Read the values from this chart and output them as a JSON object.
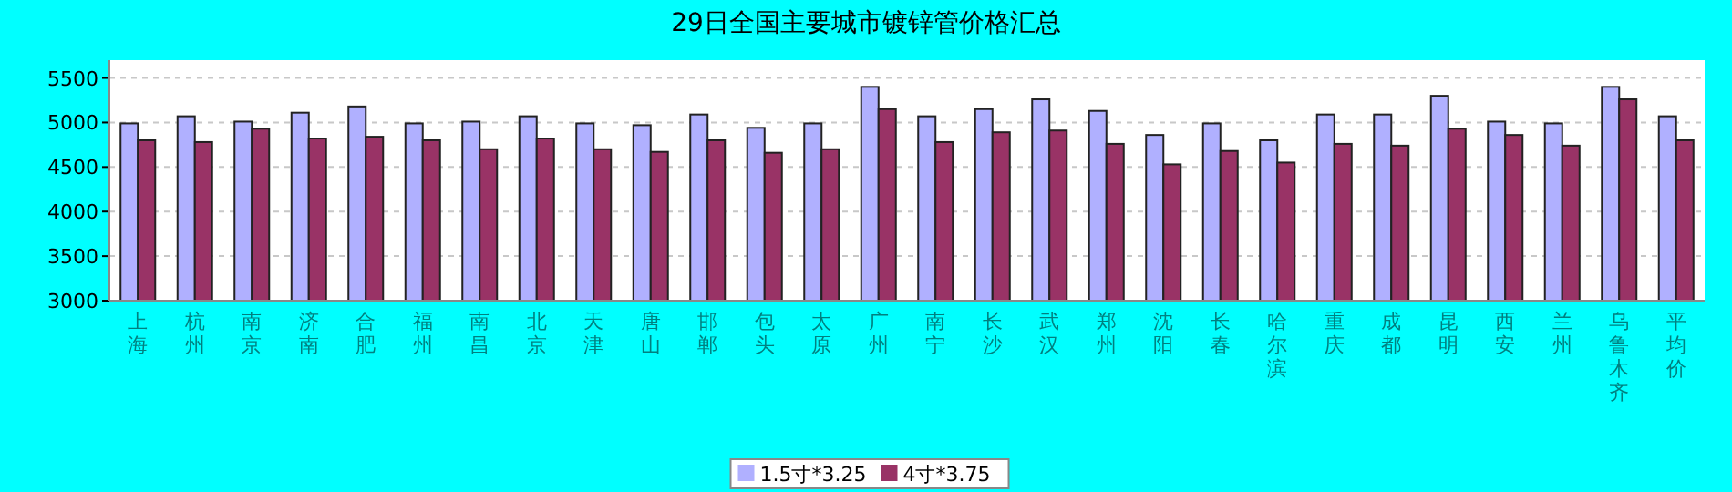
{
  "chart_data": {
    "type": "bar",
    "title": "29日全国主要城市镀锌管价格汇总",
    "categories": [
      "上海",
      "杭州",
      "南京",
      "济南",
      "合肥",
      "福州",
      "南昌",
      "北京",
      "天津",
      "唐山",
      "邯郸",
      "包头",
      "太原",
      "广州",
      "南宁",
      "长沙",
      "武汉",
      "郑州",
      "沈阳",
      "长春",
      "哈尔滨",
      "重庆",
      "成都",
      "昆明",
      "西安",
      "兰州",
      "乌鲁木齐",
      "平均价"
    ],
    "series": [
      {
        "name": "1.5寸*3.25",
        "color": "#b0b0ff",
        "values": [
          4990,
          5070,
          5010,
          5110,
          5180,
          4990,
          5010,
          5070,
          4990,
          4970,
          5090,
          4940,
          4990,
          5400,
          5070,
          5150,
          5260,
          5130,
          4860,
          4990,
          4800,
          5090,
          5090,
          5300,
          5010,
          4990,
          5400,
          5070
        ]
      },
      {
        "name": "4寸*3.75",
        "color": "#993366",
        "values": [
          4800,
          4780,
          4930,
          4820,
          4840,
          4800,
          4700,
          4820,
          4700,
          4670,
          4800,
          4660,
          4700,
          5150,
          4780,
          4890,
          4910,
          4760,
          4530,
          4680,
          4550,
          4760,
          4740,
          4930,
          4860,
          4740,
          5260,
          4800
        ]
      }
    ],
    "ylim": [
      3000,
      5700
    ],
    "yticks": [
      3000,
      3500,
      4000,
      4500,
      5000,
      5500
    ],
    "grid": "y",
    "legend": "bottom"
  }
}
